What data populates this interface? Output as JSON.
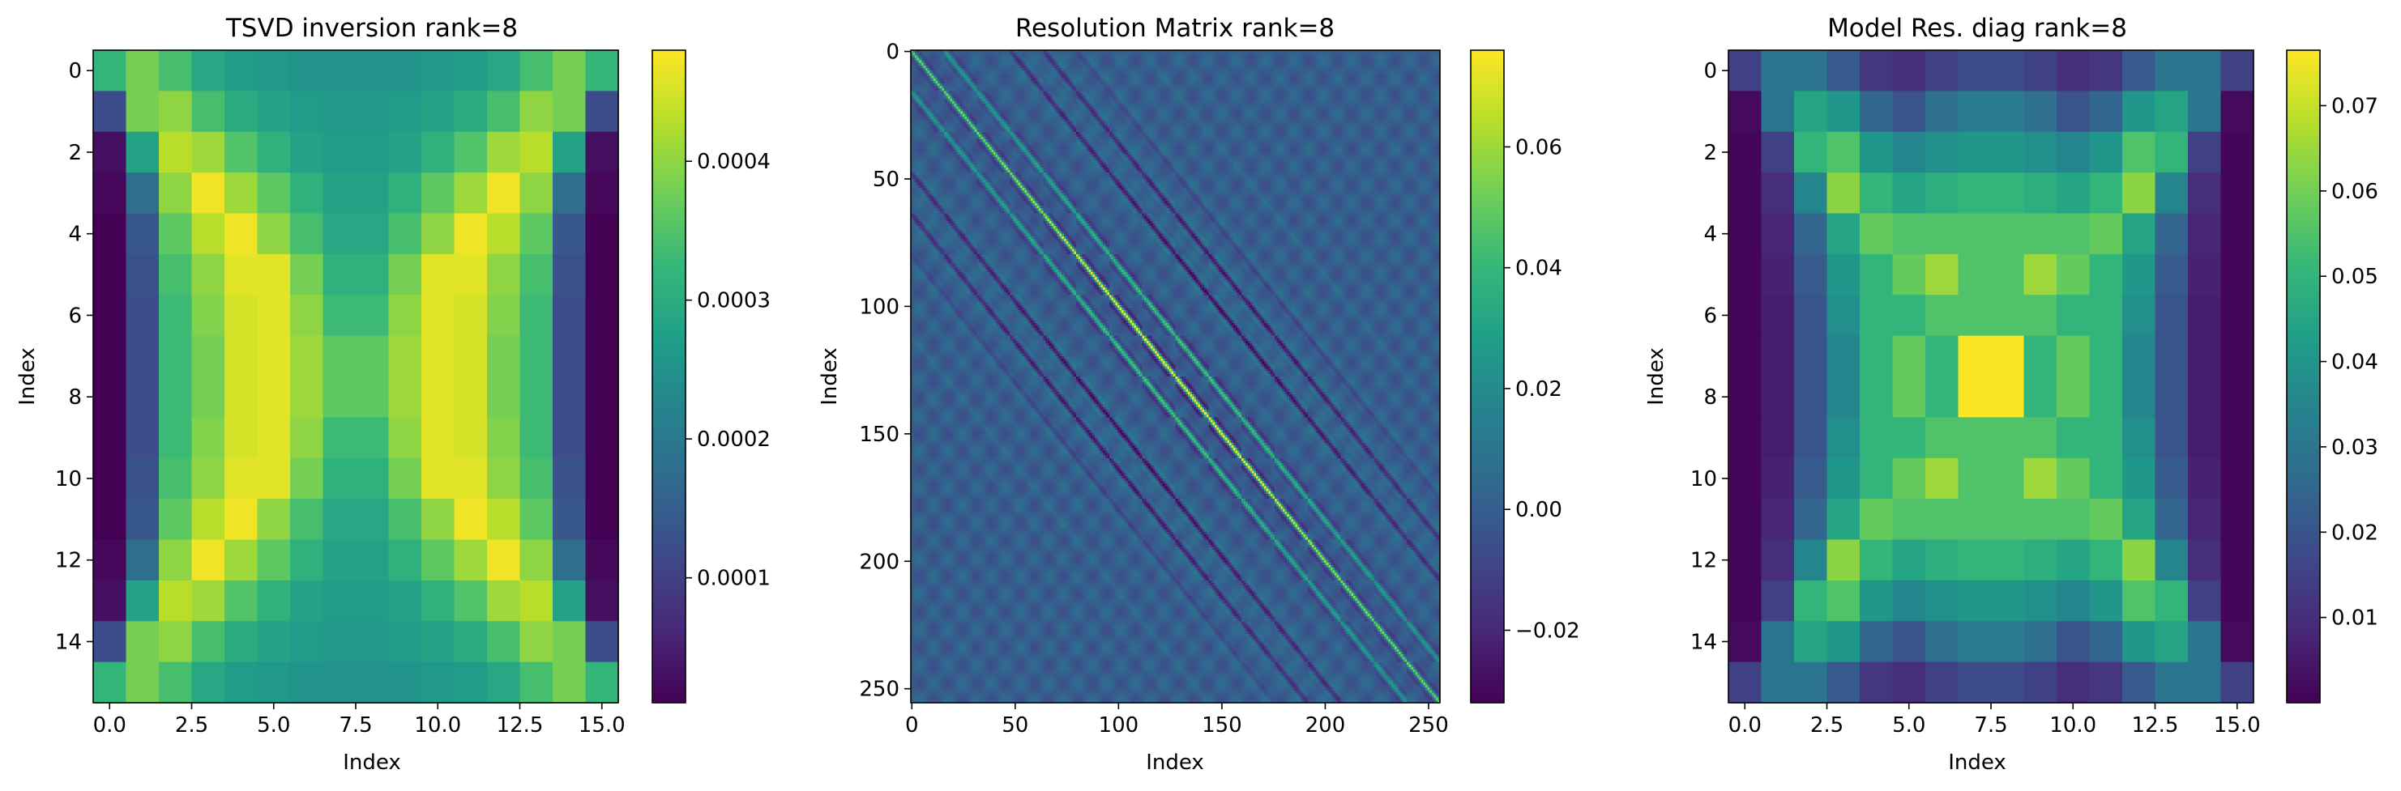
{
  "chart_data": [
    {
      "type": "heatmap",
      "title": "TSVD inversion rank=8",
      "xlabel": "Index",
      "ylabel": "Index",
      "colormap": "viridis",
      "xticks": [
        0.0,
        2.5,
        5.0,
        7.5,
        10.0,
        12.5,
        15.0
      ],
      "xtick_labels": [
        "0.0",
        "2.5",
        "5.0",
        "7.5",
        "10.0",
        "12.5",
        "15.0"
      ],
      "yticks": [
        0,
        2,
        4,
        6,
        8,
        10,
        12,
        14
      ],
      "ytick_labels": [
        "0",
        "2",
        "4",
        "6",
        "8",
        "10",
        "12",
        "14"
      ],
      "xlim": [
        -0.5,
        15.5
      ],
      "ylim": [
        15.5,
        -0.5
      ],
      "colorbar": {
        "min": 1e-05,
        "max": 0.00048,
        "ticks": [
          0.0001,
          0.0002,
          0.0003,
          0.0004
        ],
        "tick_labels": [
          "0.0001",
          "0.0002",
          "0.0003",
          "0.0004"
        ]
      },
      "z": [
        [
          0.00032,
          0.00038,
          0.00034,
          0.00029,
          0.00027,
          0.00026,
          0.00025,
          0.00025,
          0.00025,
          0.00025,
          0.00026,
          0.00027,
          0.00029,
          0.00034,
          0.00038,
          0.00032
        ],
        [
          0.00012,
          0.00038,
          0.0004,
          0.00034,
          0.0003,
          0.00028,
          0.00027,
          0.00026,
          0.00026,
          0.00027,
          0.00028,
          0.0003,
          0.00034,
          0.0004,
          0.00038,
          0.00012
        ],
        [
          3e-05,
          0.00028,
          0.00043,
          0.00041,
          0.00035,
          0.00031,
          0.00028,
          0.00027,
          0.00027,
          0.00028,
          0.00031,
          0.00035,
          0.00041,
          0.00043,
          0.00028,
          3e-05
        ],
        [
          2e-05,
          0.00018,
          0.0004,
          0.00047,
          0.00041,
          0.00036,
          0.00031,
          0.00028,
          0.00028,
          0.00031,
          0.00036,
          0.00041,
          0.00047,
          0.0004,
          0.00018,
          2e-05
        ],
        [
          1e-05,
          0.00014,
          0.00036,
          0.00043,
          0.00047,
          0.0004,
          0.00034,
          0.00029,
          0.00029,
          0.00034,
          0.0004,
          0.00047,
          0.00043,
          0.00036,
          0.00014,
          1e-05
        ],
        [
          1e-05,
          0.00013,
          0.00034,
          0.0004,
          0.00046,
          0.00046,
          0.00038,
          0.00031,
          0.00031,
          0.00038,
          0.00046,
          0.00046,
          0.0004,
          0.00034,
          0.00013,
          1e-05
        ],
        [
          1e-05,
          0.00012,
          0.00033,
          0.00039,
          0.00045,
          0.00046,
          0.0004,
          0.00033,
          0.00033,
          0.0004,
          0.00046,
          0.00045,
          0.00039,
          0.00033,
          0.00012,
          1e-05
        ],
        [
          1e-05,
          0.00012,
          0.00033,
          0.00038,
          0.00045,
          0.00046,
          0.00041,
          0.00036,
          0.00036,
          0.00041,
          0.00046,
          0.00045,
          0.00038,
          0.00033,
          0.00012,
          1e-05
        ],
        [
          1e-05,
          0.00012,
          0.00033,
          0.00038,
          0.00045,
          0.00046,
          0.00041,
          0.00036,
          0.00036,
          0.00041,
          0.00046,
          0.00045,
          0.00038,
          0.00033,
          0.00012,
          1e-05
        ],
        [
          1e-05,
          0.00012,
          0.00033,
          0.00039,
          0.00045,
          0.00046,
          0.0004,
          0.00033,
          0.00033,
          0.0004,
          0.00046,
          0.00045,
          0.00039,
          0.00033,
          0.00012,
          1e-05
        ],
        [
          1e-05,
          0.00013,
          0.00034,
          0.0004,
          0.00046,
          0.00046,
          0.00038,
          0.00031,
          0.00031,
          0.00038,
          0.00046,
          0.00046,
          0.0004,
          0.00034,
          0.00013,
          1e-05
        ],
        [
          1e-05,
          0.00014,
          0.00036,
          0.00043,
          0.00047,
          0.0004,
          0.00034,
          0.00029,
          0.00029,
          0.00034,
          0.0004,
          0.00047,
          0.00043,
          0.00036,
          0.00014,
          1e-05
        ],
        [
          2e-05,
          0.00018,
          0.0004,
          0.00047,
          0.00041,
          0.00036,
          0.00031,
          0.00028,
          0.00028,
          0.00031,
          0.00036,
          0.00041,
          0.00047,
          0.0004,
          0.00018,
          2e-05
        ],
        [
          3e-05,
          0.00028,
          0.00043,
          0.00041,
          0.00035,
          0.00031,
          0.00028,
          0.00027,
          0.00027,
          0.00028,
          0.00031,
          0.00035,
          0.00041,
          0.00043,
          0.00028,
          3e-05
        ],
        [
          0.00012,
          0.00038,
          0.0004,
          0.00034,
          0.0003,
          0.00028,
          0.00027,
          0.00026,
          0.00026,
          0.00027,
          0.00028,
          0.0003,
          0.00034,
          0.0004,
          0.00038,
          0.00012
        ],
        [
          0.00032,
          0.00038,
          0.00034,
          0.00029,
          0.00027,
          0.00026,
          0.00025,
          0.00025,
          0.00025,
          0.00025,
          0.00026,
          0.00027,
          0.00029,
          0.00034,
          0.00038,
          0.00032
        ]
      ]
    },
    {
      "type": "heatmap",
      "title": "Resolution Matrix rank=8",
      "xlabel": "Index",
      "ylabel": "Index",
      "colormap": "viridis",
      "size": 256,
      "xticks": [
        0,
        50,
        100,
        150,
        200,
        250
      ],
      "xtick_labels": [
        "0",
        "50",
        "100",
        "150",
        "200",
        "250"
      ],
      "yticks": [
        0,
        50,
        100,
        150,
        200,
        250
      ],
      "ytick_labels": [
        "0",
        "50",
        "100",
        "150",
        "200",
        "250"
      ],
      "xlim": [
        -0.5,
        255.5
      ],
      "ylim": [
        255.5,
        -0.5
      ],
      "colorbar": {
        "min": -0.032,
        "max": 0.076,
        "ticks": [
          -0.02,
          0.0,
          0.02,
          0.04,
          0.06
        ],
        "tick_labels": [
          "−0.02",
          "0.00",
          "0.02",
          "0.04",
          "0.06"
        ]
      }
    },
    {
      "type": "heatmap",
      "title": "Model Res. diag rank=8",
      "xlabel": "Index",
      "ylabel": "Index",
      "colormap": "viridis",
      "xticks": [
        0.0,
        2.5,
        5.0,
        7.5,
        10.0,
        12.5,
        15.0
      ],
      "xtick_labels": [
        "0.0",
        "2.5",
        "5.0",
        "7.5",
        "10.0",
        "12.5",
        "15.0"
      ],
      "yticks": [
        0,
        2,
        4,
        6,
        8,
        10,
        12,
        14
      ],
      "ytick_labels": [
        "0",
        "2",
        "4",
        "6",
        "8",
        "10",
        "12",
        "14"
      ],
      "xlim": [
        -0.5,
        15.5
      ],
      "ylim": [
        15.5,
        -0.5
      ],
      "colorbar": {
        "min": 0.0,
        "max": 0.0765,
        "ticks": [
          0.01,
          0.02,
          0.03,
          0.04,
          0.05,
          0.06,
          0.07
        ],
        "tick_labels": [
          "0.01",
          "0.02",
          "0.03",
          "0.04",
          "0.05",
          "0.06",
          "0.07"
        ]
      },
      "z": [
        [
          0.015,
          0.03,
          0.03,
          0.022,
          0.012,
          0.01,
          0.015,
          0.018,
          0.018,
          0.015,
          0.01,
          0.012,
          0.022,
          0.03,
          0.03,
          0.015
        ],
        [
          0.002,
          0.03,
          0.045,
          0.04,
          0.025,
          0.02,
          0.028,
          0.032,
          0.032,
          0.028,
          0.02,
          0.025,
          0.04,
          0.045,
          0.03,
          0.002
        ],
        [
          0.001,
          0.015,
          0.05,
          0.055,
          0.04,
          0.035,
          0.038,
          0.04,
          0.04,
          0.038,
          0.035,
          0.04,
          0.055,
          0.05,
          0.015,
          0.001
        ],
        [
          0.001,
          0.01,
          0.035,
          0.063,
          0.05,
          0.045,
          0.048,
          0.05,
          0.05,
          0.048,
          0.045,
          0.05,
          0.063,
          0.035,
          0.01,
          0.001
        ],
        [
          0.001,
          0.008,
          0.025,
          0.045,
          0.058,
          0.055,
          0.055,
          0.055,
          0.055,
          0.055,
          0.055,
          0.058,
          0.045,
          0.025,
          0.008,
          0.001
        ],
        [
          0.001,
          0.007,
          0.022,
          0.04,
          0.05,
          0.058,
          0.065,
          0.055,
          0.055,
          0.065,
          0.058,
          0.05,
          0.04,
          0.022,
          0.007,
          0.001
        ],
        [
          0.001,
          0.006,
          0.02,
          0.038,
          0.05,
          0.05,
          0.055,
          0.055,
          0.055,
          0.055,
          0.05,
          0.05,
          0.038,
          0.02,
          0.006,
          0.001
        ],
        [
          0.001,
          0.006,
          0.02,
          0.035,
          0.05,
          0.058,
          0.05,
          0.076,
          0.076,
          0.05,
          0.058,
          0.05,
          0.035,
          0.02,
          0.006,
          0.001
        ],
        [
          0.001,
          0.006,
          0.02,
          0.035,
          0.05,
          0.058,
          0.05,
          0.076,
          0.076,
          0.05,
          0.058,
          0.05,
          0.035,
          0.02,
          0.006,
          0.001
        ],
        [
          0.001,
          0.006,
          0.02,
          0.038,
          0.05,
          0.05,
          0.055,
          0.055,
          0.055,
          0.055,
          0.05,
          0.05,
          0.038,
          0.02,
          0.006,
          0.001
        ],
        [
          0.001,
          0.007,
          0.022,
          0.04,
          0.05,
          0.058,
          0.065,
          0.055,
          0.055,
          0.065,
          0.058,
          0.05,
          0.04,
          0.022,
          0.007,
          0.001
        ],
        [
          0.001,
          0.008,
          0.025,
          0.045,
          0.058,
          0.055,
          0.055,
          0.055,
          0.055,
          0.055,
          0.055,
          0.058,
          0.045,
          0.025,
          0.008,
          0.001
        ],
        [
          0.001,
          0.01,
          0.035,
          0.063,
          0.05,
          0.045,
          0.048,
          0.05,
          0.05,
          0.048,
          0.045,
          0.05,
          0.063,
          0.035,
          0.01,
          0.001
        ],
        [
          0.001,
          0.015,
          0.05,
          0.055,
          0.04,
          0.035,
          0.038,
          0.04,
          0.04,
          0.038,
          0.035,
          0.04,
          0.055,
          0.05,
          0.015,
          0.001
        ],
        [
          0.002,
          0.03,
          0.045,
          0.04,
          0.025,
          0.02,
          0.028,
          0.032,
          0.032,
          0.028,
          0.02,
          0.025,
          0.04,
          0.045,
          0.03,
          0.002
        ],
        [
          0.015,
          0.03,
          0.03,
          0.022,
          0.012,
          0.01,
          0.015,
          0.018,
          0.018,
          0.015,
          0.01,
          0.012,
          0.022,
          0.03,
          0.03,
          0.015
        ]
      ]
    }
  ]
}
